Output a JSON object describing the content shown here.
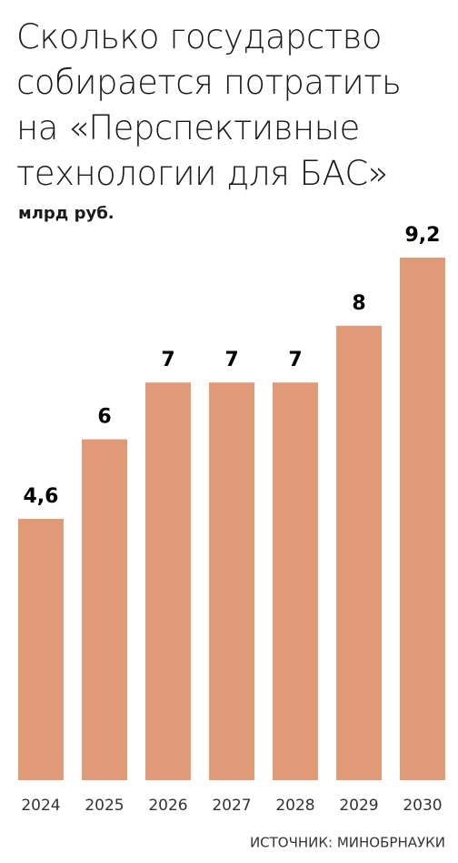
{
  "chart_data": {
    "type": "bar",
    "title": "Сколько государство\nсобирается потратить\nна «Перспективные\nтехнологии для БАС»",
    "subtitle": "млрд руб.",
    "categories": [
      "2024",
      "2025",
      "2026",
      "2027",
      "2028",
      "2029",
      "2030"
    ],
    "values": [
      4.6,
      6,
      7,
      7,
      7,
      8,
      9.2
    ],
    "value_labels": [
      "4,6",
      "6",
      "7",
      "7",
      "7",
      "8",
      "9,2"
    ],
    "color": "#e09a78",
    "source": "ИСТОЧНИК: МИНОБРНАУКИ"
  }
}
